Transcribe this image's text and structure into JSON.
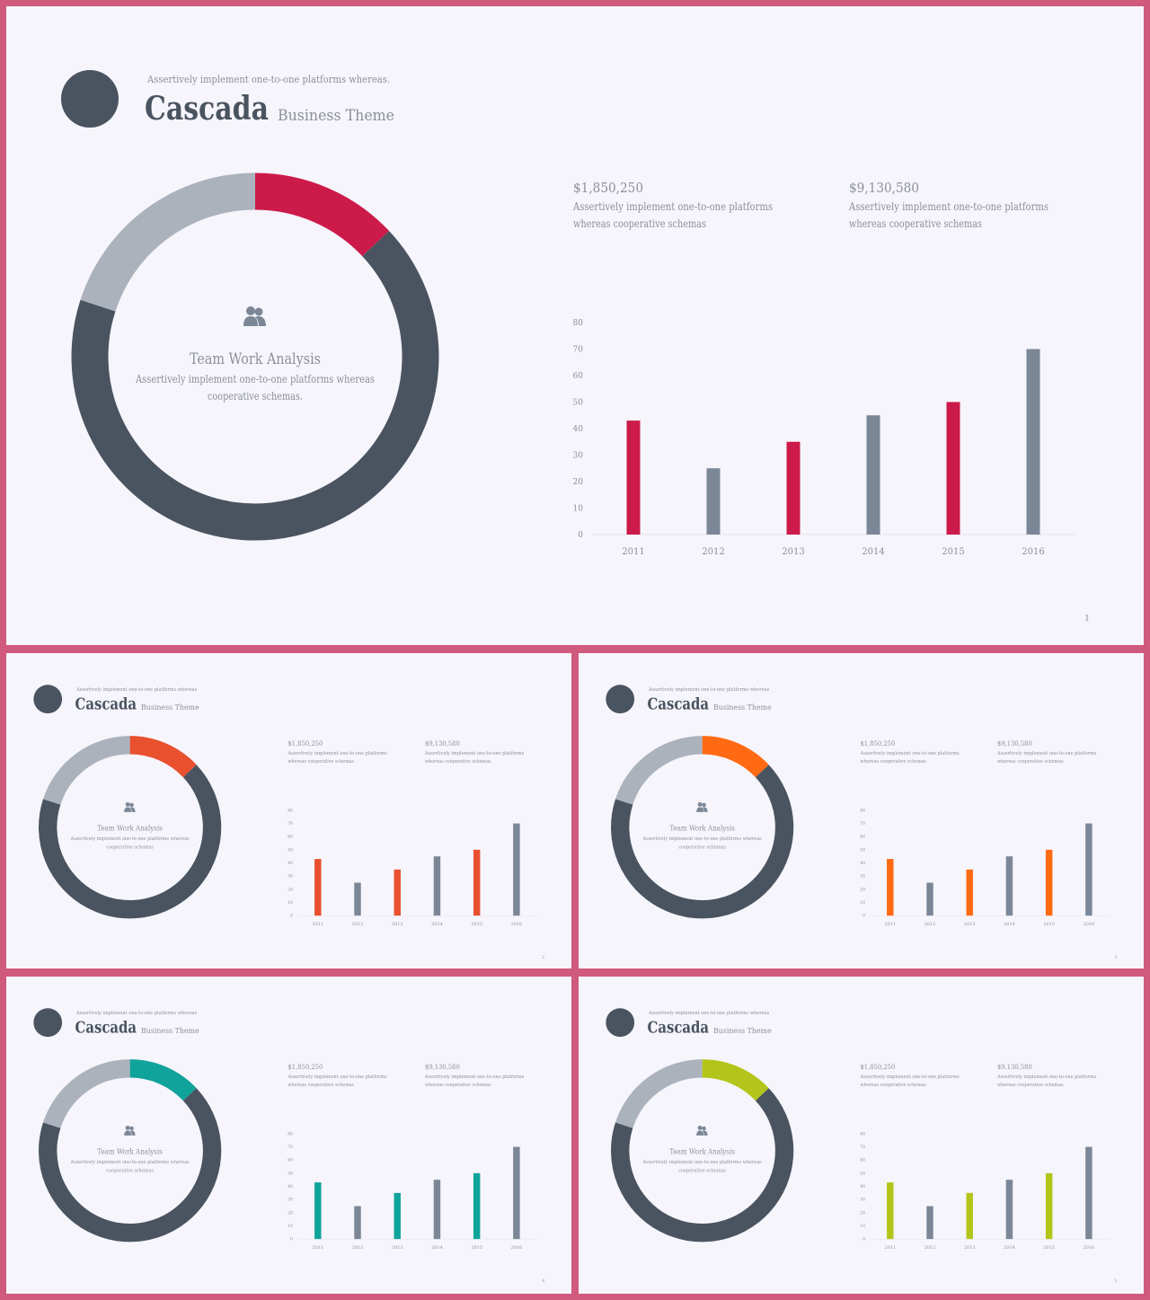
{
  "colors": {
    "dark": "#4a5461",
    "gray": "#abb2bc",
    "bar_gray": "#7b8797",
    "text": "#8b8f9c",
    "background": "#f6f5fb",
    "frame": "#d05a7d"
  },
  "icons": {
    "team": "users-icon",
    "logo": "circle-logo"
  },
  "slides": [
    {
      "number": "1",
      "accent": "#cc1a4a",
      "header": {
        "tagline": "Assertively implement one-to-one platforms whereas.",
        "title": "Cascada",
        "subtitle": "Business Theme"
      },
      "donut": {
        "title": "Team Work Analysis",
        "text_line1": "Assertively implement one-to-one platforms whereas",
        "text_line2": "cooperative schemas."
      },
      "stats": [
        {
          "value": "$1,850,250",
          "line1": "Assertively implement one-to-one platforms",
          "line2": "whereas cooperative schemas"
        },
        {
          "value": "$9,130,580",
          "line1": "Assertively implement one-to-one platforms",
          "line2": "whereas cooperative schemas"
        }
      ]
    },
    {
      "number": "2",
      "accent": "#e8502e",
      "header": {
        "tagline": "Assertively implement one-to-one platforms whereas",
        "title": "Cascada",
        "subtitle": "Business Theme"
      },
      "donut": {
        "title": "Team Work Analysis",
        "text_line1": "Assertively implement one-to-one platforms whereas",
        "text_line2": "cooperative schemas"
      },
      "stats": [
        {
          "value": "$1,850,250",
          "line1": "Assertively implement one-to-one platforms",
          "line2": "whereas cooperative schemas"
        },
        {
          "value": "$9,130,580",
          "line1": "Assertively implement one-to-one platforms",
          "line2": "whereas cooperative schemas"
        }
      ]
    },
    {
      "number": "3",
      "accent": "#ff6a13",
      "header": {
        "tagline": "Assertively implement one-to-one platforms whereas",
        "title": "Cascada",
        "subtitle": "Business Theme"
      },
      "donut": {
        "title": "Team Work Analysis",
        "text_line1": "Assertively implement one-to-one platforms whereas",
        "text_line2": "cooperative schemas"
      },
      "stats": [
        {
          "value": "$1,850,250",
          "line1": "Assertively implement one-to-one platforms",
          "line2": "whereas cooperative schemas"
        },
        {
          "value": "$9,130,580",
          "line1": "Assertively implement one-to-one platforms",
          "line2": "whereas cooperative schemas"
        }
      ]
    },
    {
      "number": "4",
      "accent": "#10a39b",
      "header": {
        "tagline": "Assertively implement one-to-one platforms whereas",
        "title": "Cascada",
        "subtitle": "Business Theme"
      },
      "donut": {
        "title": "Team Work Analysis",
        "text_line1": "Assertively implement one-to-one platforms whereas",
        "text_line2": "cooperative schemas"
      },
      "stats": [
        {
          "value": "$1,850,250",
          "line1": "Assertively implement one-to-one platforms",
          "line2": "whereas cooperative schemas"
        },
        {
          "value": "$9,130,580",
          "line1": "Assertively implement one-to-one platforms",
          "line2": "whereas cooperative schemas"
        }
      ]
    },
    {
      "number": "5",
      "accent": "#b3c51a",
      "header": {
        "tagline": "Assertively implement one-to-one platforms whereas",
        "title": "Cascada",
        "subtitle": "Business Theme"
      },
      "donut": {
        "title": "Team Work Analysis",
        "text_line1": "Assertively implement one-to-one platforms whereas",
        "text_line2": "cooperative schemas"
      },
      "stats": [
        {
          "value": "$1,850,250",
          "line1": "Assertively implement one-to-one platforms",
          "line2": "whereas cooperative schemas"
        },
        {
          "value": "$9,130,580",
          "line1": "Assertively implement one-to-one platforms",
          "line2": "whereas cooperative schemas"
        }
      ]
    }
  ],
  "chart_data": [
    {
      "type": "pie",
      "title": "Team Work Analysis",
      "style": "donut",
      "values": [
        13,
        67,
        20
      ],
      "colors": [
        "accent",
        "#4a5461",
        "#abb2bc"
      ]
    },
    {
      "type": "bar",
      "categories": [
        "2011",
        "2012",
        "2013",
        "2014",
        "2015",
        "2016"
      ],
      "values": [
        43,
        25,
        35,
        45,
        50,
        70
      ],
      "colors": [
        "accent",
        "#7b8797",
        "accent",
        "#7b8797",
        "accent",
        "#7b8797"
      ],
      "yticks": [
        "0",
        "10",
        "20",
        "30",
        "40",
        "50",
        "60",
        "70",
        "80"
      ],
      "ylim": [
        0,
        80
      ],
      "grid": false
    }
  ]
}
